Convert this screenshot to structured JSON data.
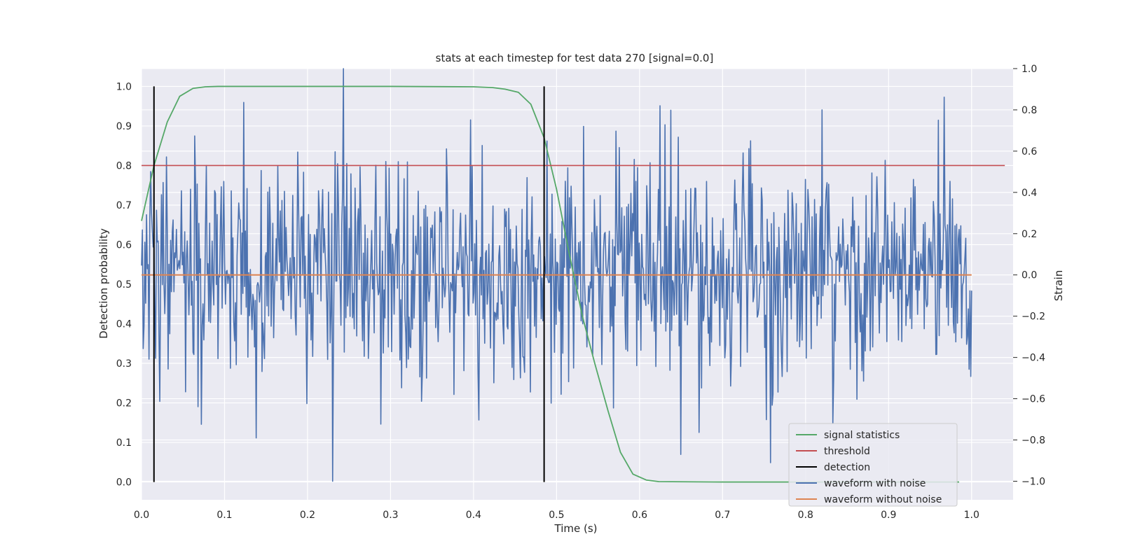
{
  "chart_data": {
    "type": "line",
    "title": "stats at each timestep for test data 270 [signal=0.0]",
    "xlabel": "Time (s)",
    "ylabel_left": "Detection probability",
    "ylabel_right": "Strain",
    "xlim": [
      0.0,
      1.05
    ],
    "ylim_left": [
      -0.045,
      1.045
    ],
    "ylim_right": [
      -1.09,
      1.0
    ],
    "x_ticks": [
      0.0,
      0.1,
      0.2,
      0.3,
      0.4,
      0.5,
      0.6,
      0.7,
      0.8,
      0.9,
      1.0
    ],
    "x_tick_labels": [
      "0.0",
      "0.1",
      "0.2",
      "0.3",
      "0.4",
      "0.5",
      "0.6",
      "0.7",
      "0.8",
      "0.9",
      "1.0"
    ],
    "y_left_ticks": [
      0.0,
      0.1,
      0.2,
      0.3,
      0.4,
      0.5,
      0.6,
      0.7,
      0.8,
      0.9,
      1.0
    ],
    "y_left_tick_labels": [
      "0.0",
      "0.1",
      "0.2",
      "0.3",
      "0.4",
      "0.5",
      "0.6",
      "0.7",
      "0.8",
      "0.9",
      "1.0"
    ],
    "y_right_ticks": [
      -1.0,
      -0.8,
      -0.6,
      -0.4,
      -0.2,
      0.0,
      0.2,
      0.4,
      0.6,
      0.8,
      1.0
    ],
    "y_right_tick_labels": [
      "−1.0",
      "−0.8",
      "−0.6",
      "−0.4",
      "−0.2",
      "0.0",
      "0.2",
      "0.4",
      "0.6",
      "0.8",
      "1.0"
    ],
    "grid": true,
    "legend_position": "lower-right",
    "series": [
      {
        "name": "signal statistics",
        "axis": "left",
        "color": "#55a868",
        "x": [
          0.0,
          0.015,
          0.031,
          0.046,
          0.062,
          0.077,
          0.092,
          0.108,
          0.2,
          0.3,
          0.4,
          0.423,
          0.438,
          0.454,
          0.469,
          0.485,
          0.5,
          0.515,
          0.531,
          0.546,
          0.562,
          0.577,
          0.592,
          0.608,
          0.623,
          0.7,
          0.8,
          0.9,
          0.985
        ],
        "y": [
          0.66,
          0.8,
          0.91,
          0.975,
          0.995,
          0.999,
          1.0,
          1.0,
          1.0,
          1.0,
          0.999,
          0.997,
          0.993,
          0.985,
          0.955,
          0.87,
          0.74,
          0.58,
          0.42,
          0.3,
          0.18,
          0.075,
          0.02,
          0.005,
          0.001,
          0.0,
          0.0,
          0.0,
          0.0
        ]
      },
      {
        "name": "threshold",
        "axis": "left",
        "color": "#c44e52",
        "x": [
          0.0,
          1.04
        ],
        "y": [
          0.8,
          0.8
        ]
      },
      {
        "name": "detection",
        "axis": "left",
        "color": "#000000",
        "x_values": [
          0.015,
          0.485
        ],
        "y_range": [
          0.0,
          1.0
        ]
      },
      {
        "name": "waveform with noise",
        "axis": "right",
        "color": "#4c72b0",
        "x_range": [
          0.0,
          1.0
        ],
        "num_points": 1000,
        "highlights": [
          {
            "x": 0.243,
            "y": 1.0
          },
          {
            "x": 0.23,
            "y": -1.0
          },
          {
            "x": 0.138,
            "y": -0.79
          },
          {
            "x": 0.625,
            "y": 0.82
          },
          {
            "x": 0.82,
            "y": 0.8
          },
          {
            "x": 0.533,
            "y": 0.72
          },
          {
            "x": 0.65,
            "y": -0.87
          },
          {
            "x": 0.833,
            "y": -0.72
          },
          {
            "x": 0.758,
            "y": -0.91
          },
          {
            "x": 0.96,
            "y": 0.75
          }
        ]
      },
      {
        "name": "waveform without noise",
        "axis": "right",
        "color": "#dd8452",
        "x": [
          0.0,
          1.0
        ],
        "y": [
          0.0,
          0.0
        ]
      }
    ]
  }
}
